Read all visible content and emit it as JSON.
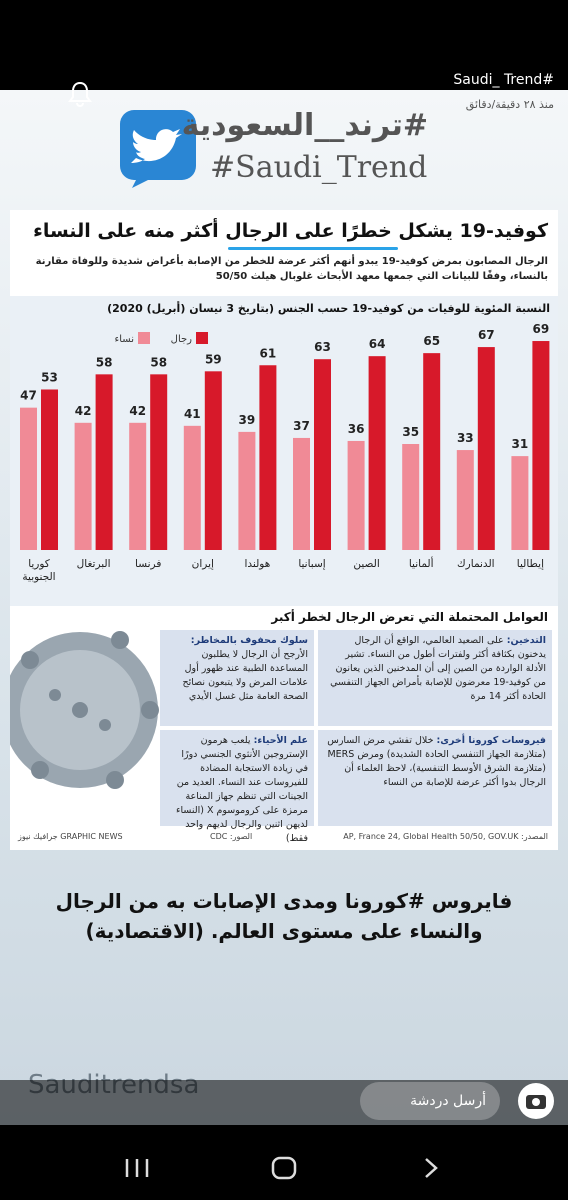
{
  "header": {
    "username": "Saudi_ Trend#",
    "time": "منذ ٢٨ دقيقة/دقائق"
  },
  "banner": {
    "title_ar": "#ترند__السعودية",
    "title_en": "#Saudi_Trend"
  },
  "infographic": {
    "headline": "كوفيد-19 يشكل خطرًا على الرجال أكثر منه على النساء",
    "intro": "الرجال المصابون بمرض كوفيد-19 يبدو أنهم أكثر عرضة للخطر من الإصابة بأعراض شديدة وللوفاة مقارنة بالنساء، وفقًا للبيانات التي جمعها معهد الأبحاث غلوبال هيلث 50/50",
    "factors_title": "العوامل المحتملة التي تعرض الرجال لخطر أكبر",
    "factors": [
      {
        "heading": "التدخين:",
        "text": "على الصعيد العالمي، الواقع أن الرجال يدخنون بكثافة أكثر ولفترات أطول من النساء. تشير الأدلة الواردة من الصين إلى أن المدخنين الذين يعانون من كوفيد-19 معرضون للإصابة بأمراض الجهاز التنفسي الحادة أكثر 14 مرة"
      },
      {
        "heading": "سلوك محفوف بالمخاطر:",
        "text": "الأرجح أن الرجال لا يطلبون المساعدة الطبية عند ظهور أول علامات المرض ولا يتبعون نصائح الصحة العامة مثل غسل الأيدي"
      },
      {
        "heading": "فيروسات كورونا أخرى:",
        "text": "خلال تفشي مرض السارس (متلازمة الجهاز التنفسي الحادة الشديدة) ومرض MERS (متلازمة الشرق الأوسط التنفسية)، لاحظ العلماء أن الرجال بدوا أكثر عرضة للإصابة من النساء"
      },
      {
        "heading": "علم الأحياء:",
        "text": "يلعب هرمون الإستروجين الأنثوي الجنسي دورًا في زيادة الاستجابة المضادة للفيروسات عند النساء. العديد من الجينات التي تنظم جهاز المناعة مرمزة على كروموسوم X (النساء لديهن اثنين والرجال لديهم واحد فقط)"
      }
    ],
    "source": "المصدر: AP, France 24, Global Health 50/50, GOV.UK",
    "photos": "الصور: CDC",
    "credit": "جرافيك نيوز GRAPHIC NEWS"
  },
  "chart_data": {
    "type": "bar",
    "title": "النسبة المئوية للوفيات من كوفيد-19 حسب الجنس (بتاريخ 3 نيسان (أبريل) 2020)",
    "categories": [
      "كوريا الجنوبية",
      "البرتغال",
      "فرنسا",
      "إيران",
      "هولندا",
      "إسبانيا",
      "الصين",
      "ألمانيا",
      "الدنمارك",
      "إيطاليا"
    ],
    "series": [
      {
        "name": "نساء",
        "color": "#f08a96",
        "values": [
          47,
          42,
          42,
          41,
          39,
          37,
          36,
          35,
          33,
          31
        ]
      },
      {
        "name": "رجال",
        "color": "#d7192a",
        "values": [
          53,
          58,
          58,
          59,
          61,
          63,
          64,
          65,
          67,
          69
        ]
      }
    ],
    "ylim": [
      0,
      70
    ]
  },
  "caption": "فايروس #كورونا ومدى الإصابات به من الرجال والنساء على مستوى العالم. (الاقتصادية)",
  "watermark": "Sauditrendsa",
  "chat_placeholder": "أرسل دردشة"
}
